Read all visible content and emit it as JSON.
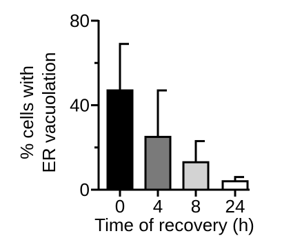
{
  "chart_data": {
    "type": "bar",
    "categories": [
      "0",
      "4",
      "8",
      "24"
    ],
    "values": [
      47,
      25,
      13,
      4
    ],
    "error_upper": [
      69,
      47,
      23,
      6
    ],
    "bar_colors": [
      "#000000",
      "#7a7a7a",
      "#d3d3d3",
      "#ffffff"
    ],
    "ylabel_line1": "% cells with",
    "ylabel_line2": "ER vacuolation",
    "xlabel": "Time of recovery (h)",
    "ylim": [
      0,
      80
    ],
    "yticks": [
      0,
      40,
      80
    ],
    "ytick_labels": [
      "0",
      "40",
      "80"
    ],
    "yminor_ticks": [
      20,
      60
    ],
    "grid": false,
    "legend": "none"
  }
}
